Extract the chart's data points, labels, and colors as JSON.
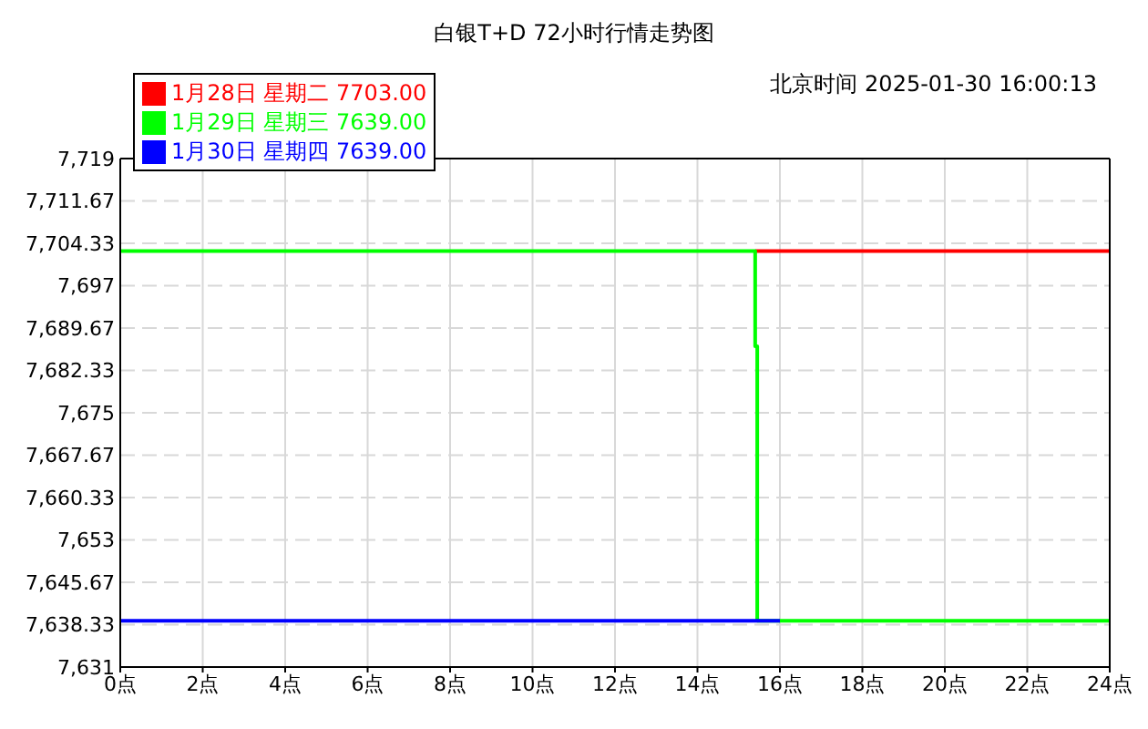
{
  "chart_data": {
    "type": "line",
    "title": "白银T+D 72小时行情走势图",
    "annotations": [
      "北京时间 2025-01-30 16:00:13"
    ],
    "series": [
      {
        "name": "1月28日 星期二 7703.00",
        "color": "#ff0000",
        "x": [
          15.4,
          24
        ],
        "values": [
          7703,
          7703
        ]
      },
      {
        "name": "1月29日 星期三 7639.00",
        "color": "#00ff00",
        "x": [
          0,
          15.4,
          15.4,
          15.45,
          15.45,
          24
        ],
        "values": [
          7703,
          7703,
          7686.5,
          7686.5,
          7639,
          7639
        ]
      },
      {
        "name": "1月30日 星期四 7639.00",
        "color": "#0000ff",
        "x": [
          0,
          16
        ],
        "values": [
          7639,
          7639
        ]
      }
    ],
    "xlim": [
      0,
      24
    ],
    "xticks": [
      {
        "value": 0,
        "label": "0点"
      },
      {
        "value": 2,
        "label": "2点"
      },
      {
        "value": 4,
        "label": "4点"
      },
      {
        "value": 6,
        "label": "6点"
      },
      {
        "value": 8,
        "label": "8点"
      },
      {
        "value": 10,
        "label": "10点"
      },
      {
        "value": 12,
        "label": "12点"
      },
      {
        "value": 14,
        "label": "14点"
      },
      {
        "value": 16,
        "label": "16点"
      },
      {
        "value": 18,
        "label": "18点"
      },
      {
        "value": 20,
        "label": "20点"
      },
      {
        "value": 22,
        "label": "22点"
      },
      {
        "value": 24,
        "label": "24点"
      }
    ],
    "ylim": [
      7631,
      7719
    ],
    "yticks": [
      {
        "value": 7631,
        "label": "7,631"
      },
      {
        "value": 7638.33,
        "label": "7,638.33"
      },
      {
        "value": 7645.67,
        "label": "7,645.67"
      },
      {
        "value": 7653,
        "label": "7,653"
      },
      {
        "value": 7660.33,
        "label": "7,660.33"
      },
      {
        "value": 7667.67,
        "label": "7,667.67"
      },
      {
        "value": 7675,
        "label": "7,675"
      },
      {
        "value": 7682.33,
        "label": "7,682.33"
      },
      {
        "value": 7689.67,
        "label": "7,689.67"
      },
      {
        "value": 7697,
        "label": "7,697"
      },
      {
        "value": 7704.33,
        "label": "7,704.33"
      },
      {
        "value": 7711.67,
        "label": "7,711.67"
      },
      {
        "value": 7719,
        "label": "7,719"
      }
    ],
    "grid": true,
    "legend": "top left"
  }
}
